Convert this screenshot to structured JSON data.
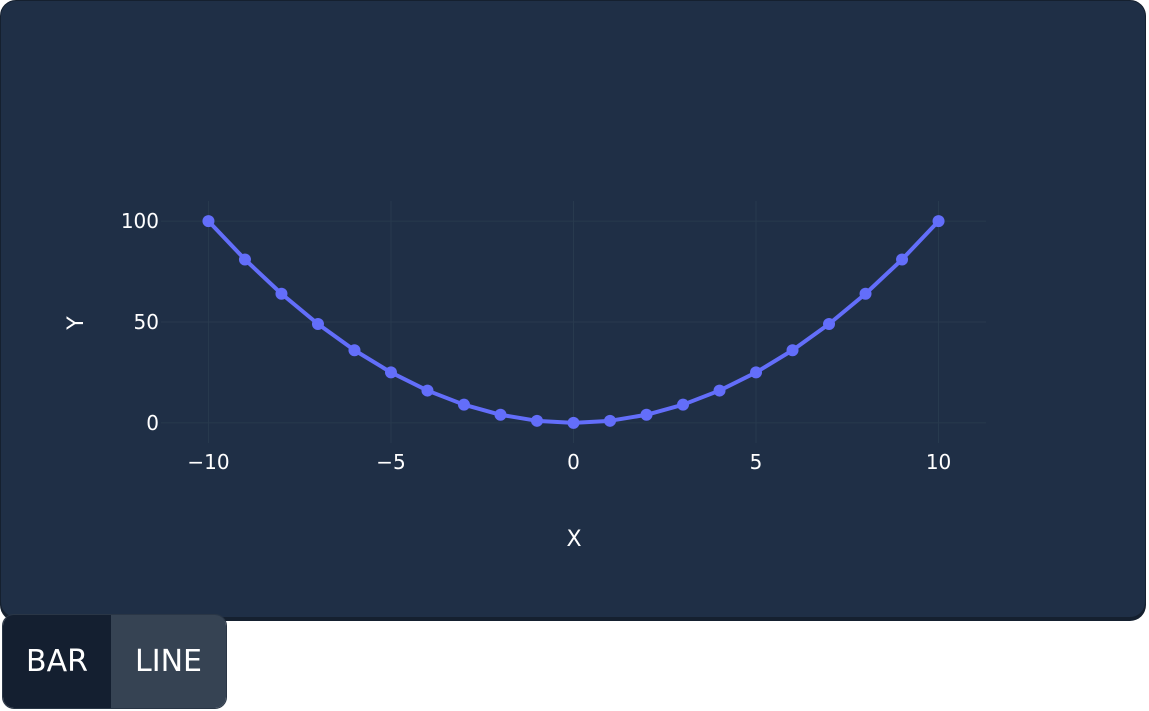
{
  "chart_data": {
    "type": "line",
    "title": "",
    "xlabel": "X",
    "ylabel": "Y",
    "x": [
      -10,
      -9,
      -8,
      -7,
      -6,
      -5,
      -4,
      -3,
      -2,
      -1,
      0,
      1,
      2,
      3,
      4,
      5,
      6,
      7,
      8,
      9,
      10
    ],
    "series": [
      {
        "values": [
          100,
          81,
          64,
          49,
          36,
          25,
          16,
          9,
          4,
          1,
          0,
          1,
          4,
          9,
          16,
          25,
          36,
          49,
          64,
          81,
          100
        ]
      }
    ],
    "xlim": [
      -11.3,
      11.3
    ],
    "ylim": [
      -10,
      110
    ],
    "xticks": [
      -10,
      -5,
      0,
      5,
      10
    ],
    "xtick_labels": [
      "−10",
      "−5",
      "0",
      "5",
      "10"
    ],
    "yticks": [
      0,
      50,
      100
    ],
    "ytick_labels": [
      "0",
      "50",
      "100"
    ],
    "grid": true,
    "mode": "lines+markers",
    "colors": {
      "line": "#636efa",
      "grid": "#283a4e",
      "background": "#1f2f46"
    }
  },
  "controls": {
    "bar_label": "BAR",
    "line_label": "LINE"
  }
}
